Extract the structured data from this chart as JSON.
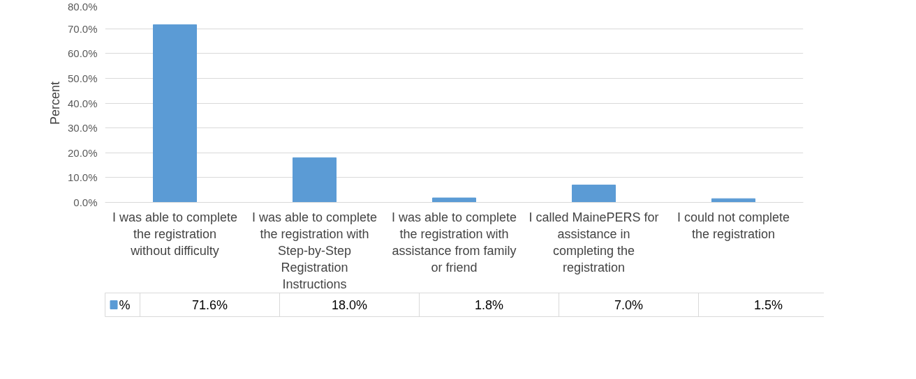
{
  "chart_data": {
    "type": "bar",
    "ylabel": "Percent",
    "categories": [
      "I was able to complete the registration without difficulty",
      "I was able to complete the registration with Step-by-Step Registration Instructions",
      "I was able to complete the registration with assistance from family or friend",
      "I called MainePERS for assistance in completing the registration",
      "I could not complete the registration"
    ],
    "series": [
      {
        "name": "%",
        "color": "#5b9bd5",
        "values": [
          71.6,
          18.0,
          1.8,
          7.0,
          1.5
        ],
        "value_labels": [
          "71.6%",
          "18.0%",
          "1.8%",
          "7.0%",
          "1.5%"
        ]
      }
    ],
    "ylim": [
      0,
      80
    ],
    "yticks": [
      {
        "value": 0,
        "label": "0.0%"
      },
      {
        "value": 10,
        "label": "10.0%"
      },
      {
        "value": 20,
        "label": "20.0%"
      },
      {
        "value": 30,
        "label": "30.0%"
      },
      {
        "value": 40,
        "label": "40.0%"
      },
      {
        "value": 50,
        "label": "50.0%"
      },
      {
        "value": 60,
        "label": "60.0%"
      },
      {
        "value": 70,
        "label": "70.0%"
      },
      {
        "value": 80,
        "label": "80.0%"
      }
    ],
    "grid": "y",
    "legend": "bottom left"
  }
}
